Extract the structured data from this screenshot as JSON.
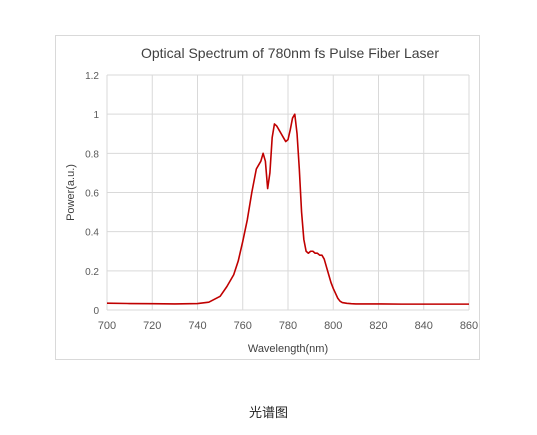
{
  "caption": "光谱图",
  "chart_data": {
    "type": "line",
    "title": "Optical Spectrum of 780nm fs Pulse Fiber Laser",
    "xlabel": "Wavelength(nm)",
    "ylabel": "Power(a.u.)",
    "xlim": [
      700,
      860
    ],
    "ylim": [
      0,
      1.2
    ],
    "xticks": [
      "700",
      "720",
      "740",
      "760",
      "780",
      "800",
      "820",
      "840",
      "860"
    ],
    "yticks": [
      "0",
      "0.2",
      "0.4",
      "0.6",
      "0.8",
      "1",
      "1.2"
    ],
    "grid": true,
    "legend": "none",
    "line_color": "#c00000",
    "series": [
      {
        "x": [
          700,
          710,
          720,
          730,
          740,
          745,
          750,
          753,
          756,
          758,
          760,
          762,
          764,
          765,
          766,
          767,
          768,
          769,
          770,
          771,
          772,
          773,
          774,
          775,
          776,
          777,
          778,
          779,
          780,
          781,
          782,
          783,
          784,
          785,
          786,
          787,
          788,
          789,
          790,
          791,
          792,
          793,
          794,
          795,
          796,
          797,
          798,
          799,
          800,
          801,
          802,
          803,
          804,
          806,
          808,
          810,
          815,
          820,
          830,
          840,
          850,
          860
        ],
        "y": [
          0.035,
          0.033,
          0.032,
          0.031,
          0.033,
          0.04,
          0.07,
          0.12,
          0.18,
          0.25,
          0.35,
          0.46,
          0.6,
          0.66,
          0.72,
          0.74,
          0.76,
          0.8,
          0.76,
          0.62,
          0.7,
          0.88,
          0.95,
          0.94,
          0.92,
          0.9,
          0.88,
          0.86,
          0.87,
          0.92,
          0.98,
          1.0,
          0.9,
          0.72,
          0.5,
          0.36,
          0.3,
          0.29,
          0.3,
          0.3,
          0.29,
          0.29,
          0.28,
          0.28,
          0.26,
          0.22,
          0.18,
          0.14,
          0.11,
          0.085,
          0.06,
          0.045,
          0.038,
          0.034,
          0.032,
          0.031,
          0.031,
          0.031,
          0.03,
          0.03,
          0.03,
          0.03
        ]
      }
    ]
  }
}
